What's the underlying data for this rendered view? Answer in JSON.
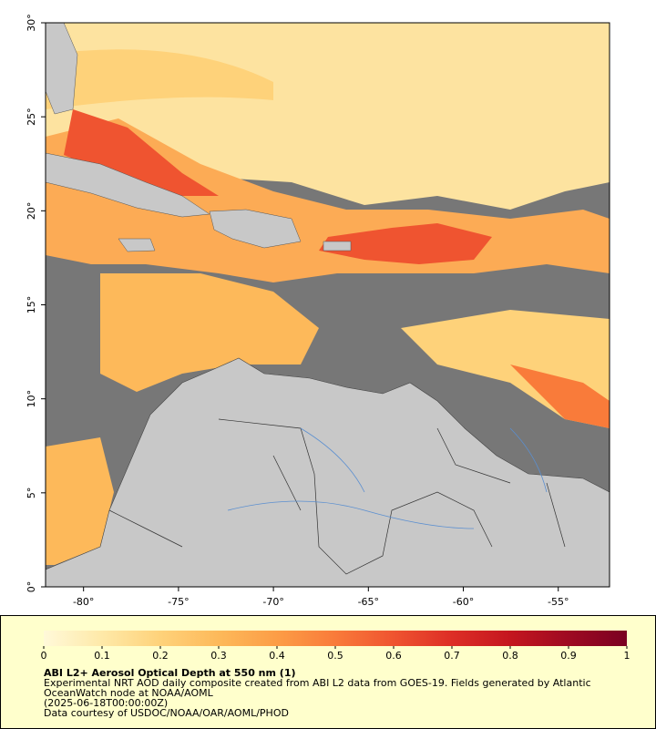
{
  "map": {
    "lonlim": [
      -82,
      -52.3
    ],
    "latlim": [
      0,
      30
    ],
    "lonticks": [
      {
        "value": -80,
        "label": "-80°"
      },
      {
        "value": -75,
        "label": "-75°"
      },
      {
        "value": -70,
        "label": "-70°"
      },
      {
        "value": -65,
        "label": "-65°"
      },
      {
        "value": -60,
        "label": "-60°"
      },
      {
        "value": -55,
        "label": "-55°"
      }
    ],
    "latticks": [
      {
        "value": 0,
        "label": "0°"
      },
      {
        "value": 5,
        "label": "5°"
      },
      {
        "value": 10,
        "label": "10°"
      },
      {
        "value": 15,
        "label": "15°"
      },
      {
        "value": 20,
        "label": "20°"
      },
      {
        "value": 25,
        "label": "25°"
      },
      {
        "value": 30,
        "label": "30°"
      }
    ]
  },
  "colorbar": {
    "lim": [
      0,
      1
    ],
    "ticks": [
      0,
      0.1,
      0.2,
      0.3,
      0.4,
      0.5,
      0.6,
      0.7,
      0.8,
      0.9,
      1
    ],
    "colors": [
      "#fff9d9",
      "#fee9a8",
      "#fed27a",
      "#fdb95a",
      "#fc9d46",
      "#f97b3a",
      "#ef5430",
      "#dd2e26",
      "#c4161f",
      "#9e0a22",
      "#7a0022"
    ]
  },
  "caption": {
    "title": "ABI L2+ Aerosol Optical Depth at 550 nm (1)",
    "line1": "Experimental NRT AOD daily composite created from ABI L2 data from GOES-19. Fields generated by Atlantic",
    "line2": "OceanWatch node at NOAA/AOML",
    "line3": "(2025-06-18T00:00:00Z)",
    "line4": "Data courtesy of USDOC/NOAA/OAR/AOML/PHOD"
  }
}
